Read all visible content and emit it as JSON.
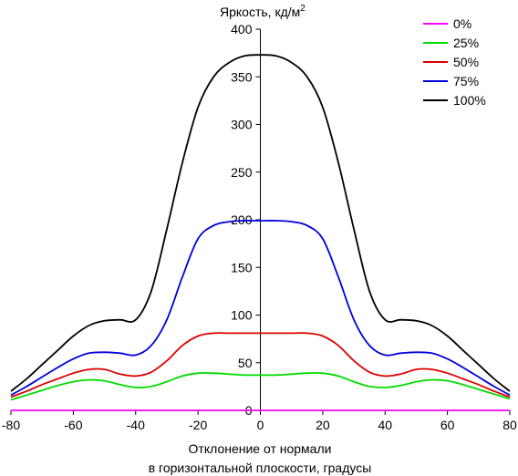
{
  "chart_data": {
    "type": "line",
    "ylabel": "Яркость, кд/м",
    "ylabel_superscript": "2",
    "xlabel_line1": "Отклонение от нормали",
    "xlabel_line2": "в горизонтальной плоскости, градусы",
    "xlim": [
      -80,
      80
    ],
    "ylim": [
      0,
      400
    ],
    "x_ticks": [
      -80,
      -60,
      -40,
      -20,
      0,
      20,
      40,
      60,
      80
    ],
    "y_ticks": [
      0,
      50,
      100,
      150,
      200,
      250,
      300,
      350,
      400
    ],
    "grid": false,
    "legend_position": "top-right",
    "x": [
      -80,
      -75,
      -70,
      -65,
      -60,
      -55,
      -50,
      -45,
      -40,
      -35,
      -30,
      -25,
      -20,
      -15,
      -10,
      -5,
      0,
      5,
      10,
      15,
      20,
      25,
      30,
      35,
      40,
      45,
      50,
      55,
      60,
      65,
      70,
      75,
      80
    ],
    "series": [
      {
        "name": "0%",
        "color": "#ff00ff",
        "values": [
          0,
          0,
          0,
          0,
          0,
          0,
          0,
          0,
          0,
          0,
          0,
          0,
          0,
          0,
          0,
          0,
          0,
          0,
          0,
          0,
          0,
          0,
          0,
          0,
          0,
          0,
          0,
          0,
          0,
          0,
          0,
          0,
          0
        ]
      },
      {
        "name": "25%",
        "color": "#00dd00",
        "values": [
          11,
          16,
          21,
          26,
          30,
          32,
          31,
          27,
          24,
          25,
          30,
          36,
          39,
          39,
          38,
          37,
          37,
          37,
          38,
          39,
          39,
          36,
          30,
          25,
          24,
          26,
          30,
          32,
          31,
          27,
          22,
          17,
          12
        ]
      },
      {
        "name": "50%",
        "color": "#dd0000",
        "values": [
          14,
          20,
          27,
          33,
          39,
          43,
          43,
          38,
          36,
          40,
          52,
          68,
          78,
          81,
          81,
          81,
          81,
          81,
          81,
          81,
          78,
          68,
          52,
          40,
          36,
          38,
          43,
          43,
          39,
          33,
          27,
          20,
          14
        ]
      },
      {
        "name": "75%",
        "color": "#0000dd",
        "values": [
          16,
          25,
          35,
          45,
          54,
          60,
          61,
          60,
          58,
          68,
          95,
          140,
          180,
          194,
          198,
          199,
          199,
          199,
          198,
          194,
          180,
          140,
          95,
          68,
          58,
          60,
          61,
          60,
          54,
          45,
          35,
          25,
          16
        ]
      },
      {
        "name": "100%",
        "color": "#000000",
        "values": [
          20,
          33,
          48,
          63,
          78,
          89,
          94,
          95,
          95,
          125,
          190,
          260,
          318,
          350,
          365,
          372,
          373,
          372,
          365,
          350,
          318,
          260,
          190,
          125,
          95,
          95,
          94,
          89,
          78,
          63,
          48,
          33,
          20
        ]
      }
    ]
  }
}
